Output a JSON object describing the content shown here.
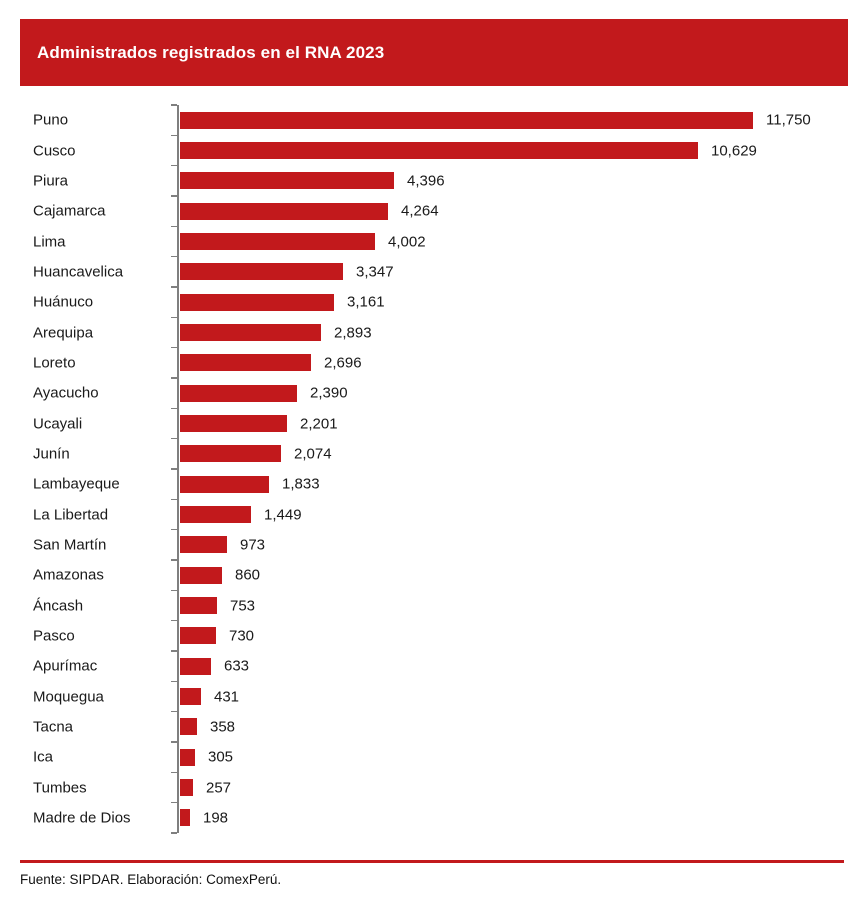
{
  "header": {
    "title": "Administrados registrados en el RNA 2023"
  },
  "footer": {
    "source": "Fuente: SIPDAR. Elaboración: ComexPerú."
  },
  "colors": {
    "banner": "#C2191C",
    "bar": "#C2191C",
    "axis": "#7f7f7f",
    "footer_line": "#C2191C",
    "title_text": "#FFFFFF",
    "label_text": "#1A1A1A"
  },
  "chart_data": {
    "type": "bar",
    "orientation": "horizontal",
    "title": "Administrados registrados en el RNA 2023",
    "xlabel": "",
    "ylabel": "",
    "xlim": [
      0,
      11750
    ],
    "grid": false,
    "legend": "none",
    "categories": [
      "Puno",
      "Cusco",
      "Piura",
      "Cajamarca",
      "Lima",
      "Huancavelica",
      "Huánuco",
      "Arequipa",
      "Loreto",
      "Ayacucho",
      "Ucayali",
      "Junín",
      "Lambayeque",
      "La Libertad",
      "San Martín",
      "Amazonas",
      "Áncash",
      "Pasco",
      "Apurímac",
      "Moquegua",
      "Tacna",
      "Ica",
      "Tumbes",
      "Madre de Dios"
    ],
    "values": [
      11750,
      10629,
      4396,
      4264,
      4002,
      3347,
      3161,
      2893,
      2696,
      2390,
      2201,
      2074,
      1833,
      1449,
      973,
      860,
      753,
      730,
      633,
      431,
      358,
      305,
      257,
      198
    ],
    "value_labels": [
      "11,750",
      "10,629",
      "4,396",
      "4,264",
      "4,002",
      "3,347",
      "3,161",
      "2,893",
      "2,696",
      "2,390",
      "2,201",
      "2,074",
      "1,833",
      "1,449",
      "973",
      "860",
      "753",
      "730",
      "633",
      "431",
      "358",
      "305",
      "257",
      "198"
    ]
  }
}
